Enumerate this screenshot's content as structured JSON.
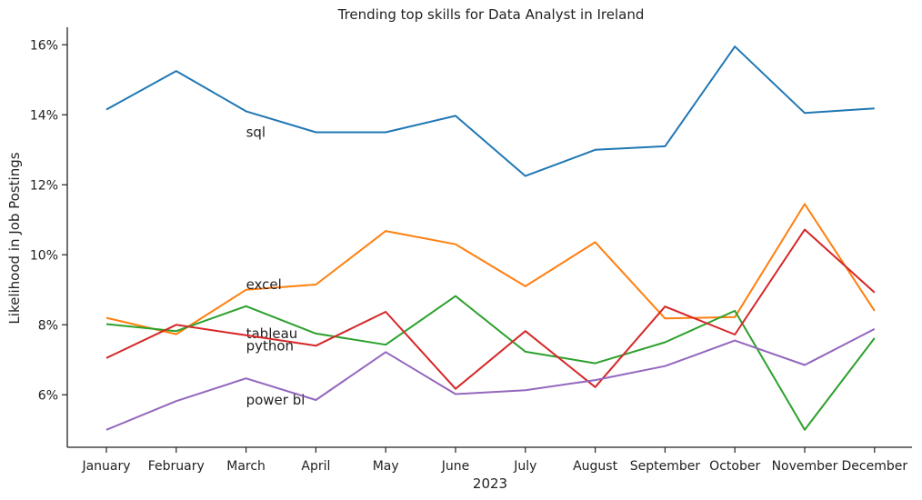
{
  "chart_data": {
    "type": "line",
    "title": "Trending top skills for Data Analyst in Ireland",
    "xlabel": "2023",
    "ylabel": "Likelihood in Job Postings",
    "categories": [
      "January",
      "February",
      "March",
      "April",
      "May",
      "June",
      "July",
      "August",
      "September",
      "October",
      "November",
      "December"
    ],
    "ylim": [
      4.5,
      16.5
    ],
    "yticks": [
      6,
      8,
      10,
      12,
      14,
      16
    ],
    "ytick_labels": [
      "6%",
      "8%",
      "10%",
      "12%",
      "14%",
      "16%"
    ],
    "grid": false,
    "legend": "none",
    "series": [
      {
        "name": "sql",
        "color": "#1f77b4",
        "label_at": 2,
        "label_value": 13.5,
        "values": [
          14.15,
          15.25,
          14.1,
          13.5,
          13.5,
          13.97,
          12.25,
          13.0,
          13.1,
          15.95,
          14.05,
          14.18
        ]
      },
      {
        "name": "excel",
        "color": "#ff7f0e",
        "label_at": 2,
        "label_value": 9.15,
        "values": [
          8.2,
          7.73,
          9.0,
          9.15,
          10.68,
          10.3,
          9.1,
          10.36,
          8.18,
          8.22,
          11.45,
          8.4
        ]
      },
      {
        "name": "tableau",
        "color": "#2ca02c",
        "label_at": 2,
        "label_value": 7.75,
        "values": [
          8.02,
          7.82,
          8.53,
          7.75,
          7.43,
          8.82,
          7.23,
          6.9,
          7.5,
          8.4,
          5.0,
          7.62
        ]
      },
      {
        "name": "python",
        "color": "#d62728",
        "label_at": 2,
        "label_value": 7.4,
        "values": [
          7.05,
          8.0,
          7.7,
          7.4,
          8.37,
          6.17,
          7.82,
          6.22,
          8.52,
          7.72,
          10.72,
          8.92
        ]
      },
      {
        "name": "power bi",
        "color": "#9467bd",
        "label_at": 2,
        "label_value": 5.85,
        "values": [
          5.0,
          5.82,
          6.47,
          5.85,
          7.22,
          6.02,
          6.13,
          6.42,
          6.82,
          7.55,
          6.85,
          7.88
        ]
      }
    ]
  }
}
